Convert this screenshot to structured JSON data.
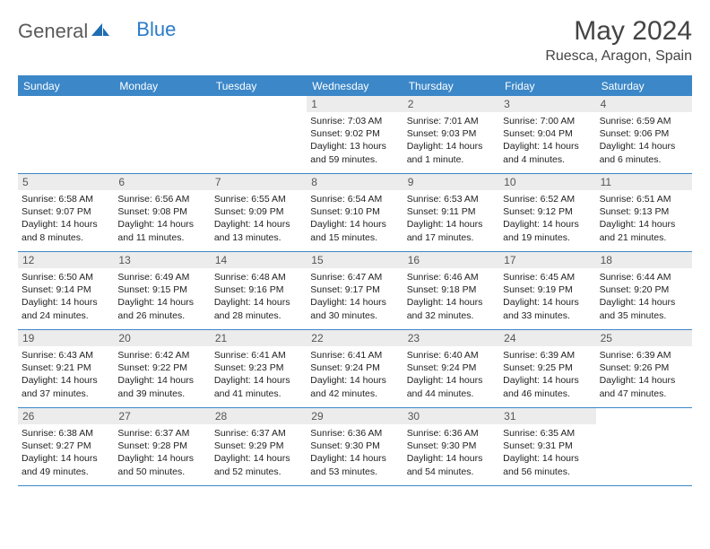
{
  "brand": {
    "part1": "General",
    "part2": "Blue"
  },
  "title": "May 2024",
  "location": "Ruesca, Aragon, Spain",
  "colors": {
    "header_bg": "#3b87c8",
    "header_text": "#ffffff",
    "daynum_bg": "#ececec",
    "daynum_text": "#555555",
    "body_text": "#222222",
    "brand_gray": "#5a5a5a",
    "brand_blue": "#2a7cc7",
    "rule": "#3b87c8"
  },
  "weekdays": [
    "Sunday",
    "Monday",
    "Tuesday",
    "Wednesday",
    "Thursday",
    "Friday",
    "Saturday"
  ],
  "weeks": [
    [
      {
        "blank": true
      },
      {
        "blank": true
      },
      {
        "blank": true
      },
      {
        "num": "1",
        "sunrise": "Sunrise: 7:03 AM",
        "sunset": "Sunset: 9:02 PM",
        "daylight": "Daylight: 13 hours and 59 minutes."
      },
      {
        "num": "2",
        "sunrise": "Sunrise: 7:01 AM",
        "sunset": "Sunset: 9:03 PM",
        "daylight": "Daylight: 14 hours and 1 minute."
      },
      {
        "num": "3",
        "sunrise": "Sunrise: 7:00 AM",
        "sunset": "Sunset: 9:04 PM",
        "daylight": "Daylight: 14 hours and 4 minutes."
      },
      {
        "num": "4",
        "sunrise": "Sunrise: 6:59 AM",
        "sunset": "Sunset: 9:06 PM",
        "daylight": "Daylight: 14 hours and 6 minutes."
      }
    ],
    [
      {
        "num": "5",
        "sunrise": "Sunrise: 6:58 AM",
        "sunset": "Sunset: 9:07 PM",
        "daylight": "Daylight: 14 hours and 8 minutes."
      },
      {
        "num": "6",
        "sunrise": "Sunrise: 6:56 AM",
        "sunset": "Sunset: 9:08 PM",
        "daylight": "Daylight: 14 hours and 11 minutes."
      },
      {
        "num": "7",
        "sunrise": "Sunrise: 6:55 AM",
        "sunset": "Sunset: 9:09 PM",
        "daylight": "Daylight: 14 hours and 13 minutes."
      },
      {
        "num": "8",
        "sunrise": "Sunrise: 6:54 AM",
        "sunset": "Sunset: 9:10 PM",
        "daylight": "Daylight: 14 hours and 15 minutes."
      },
      {
        "num": "9",
        "sunrise": "Sunrise: 6:53 AM",
        "sunset": "Sunset: 9:11 PM",
        "daylight": "Daylight: 14 hours and 17 minutes."
      },
      {
        "num": "10",
        "sunrise": "Sunrise: 6:52 AM",
        "sunset": "Sunset: 9:12 PM",
        "daylight": "Daylight: 14 hours and 19 minutes."
      },
      {
        "num": "11",
        "sunrise": "Sunrise: 6:51 AM",
        "sunset": "Sunset: 9:13 PM",
        "daylight": "Daylight: 14 hours and 21 minutes."
      }
    ],
    [
      {
        "num": "12",
        "sunrise": "Sunrise: 6:50 AM",
        "sunset": "Sunset: 9:14 PM",
        "daylight": "Daylight: 14 hours and 24 minutes."
      },
      {
        "num": "13",
        "sunrise": "Sunrise: 6:49 AM",
        "sunset": "Sunset: 9:15 PM",
        "daylight": "Daylight: 14 hours and 26 minutes."
      },
      {
        "num": "14",
        "sunrise": "Sunrise: 6:48 AM",
        "sunset": "Sunset: 9:16 PM",
        "daylight": "Daylight: 14 hours and 28 minutes."
      },
      {
        "num": "15",
        "sunrise": "Sunrise: 6:47 AM",
        "sunset": "Sunset: 9:17 PM",
        "daylight": "Daylight: 14 hours and 30 minutes."
      },
      {
        "num": "16",
        "sunrise": "Sunrise: 6:46 AM",
        "sunset": "Sunset: 9:18 PM",
        "daylight": "Daylight: 14 hours and 32 minutes."
      },
      {
        "num": "17",
        "sunrise": "Sunrise: 6:45 AM",
        "sunset": "Sunset: 9:19 PM",
        "daylight": "Daylight: 14 hours and 33 minutes."
      },
      {
        "num": "18",
        "sunrise": "Sunrise: 6:44 AM",
        "sunset": "Sunset: 9:20 PM",
        "daylight": "Daylight: 14 hours and 35 minutes."
      }
    ],
    [
      {
        "num": "19",
        "sunrise": "Sunrise: 6:43 AM",
        "sunset": "Sunset: 9:21 PM",
        "daylight": "Daylight: 14 hours and 37 minutes."
      },
      {
        "num": "20",
        "sunrise": "Sunrise: 6:42 AM",
        "sunset": "Sunset: 9:22 PM",
        "daylight": "Daylight: 14 hours and 39 minutes."
      },
      {
        "num": "21",
        "sunrise": "Sunrise: 6:41 AM",
        "sunset": "Sunset: 9:23 PM",
        "daylight": "Daylight: 14 hours and 41 minutes."
      },
      {
        "num": "22",
        "sunrise": "Sunrise: 6:41 AM",
        "sunset": "Sunset: 9:24 PM",
        "daylight": "Daylight: 14 hours and 42 minutes."
      },
      {
        "num": "23",
        "sunrise": "Sunrise: 6:40 AM",
        "sunset": "Sunset: 9:24 PM",
        "daylight": "Daylight: 14 hours and 44 minutes."
      },
      {
        "num": "24",
        "sunrise": "Sunrise: 6:39 AM",
        "sunset": "Sunset: 9:25 PM",
        "daylight": "Daylight: 14 hours and 46 minutes."
      },
      {
        "num": "25",
        "sunrise": "Sunrise: 6:39 AM",
        "sunset": "Sunset: 9:26 PM",
        "daylight": "Daylight: 14 hours and 47 minutes."
      }
    ],
    [
      {
        "num": "26",
        "sunrise": "Sunrise: 6:38 AM",
        "sunset": "Sunset: 9:27 PM",
        "daylight": "Daylight: 14 hours and 49 minutes."
      },
      {
        "num": "27",
        "sunrise": "Sunrise: 6:37 AM",
        "sunset": "Sunset: 9:28 PM",
        "daylight": "Daylight: 14 hours and 50 minutes."
      },
      {
        "num": "28",
        "sunrise": "Sunrise: 6:37 AM",
        "sunset": "Sunset: 9:29 PM",
        "daylight": "Daylight: 14 hours and 52 minutes."
      },
      {
        "num": "29",
        "sunrise": "Sunrise: 6:36 AM",
        "sunset": "Sunset: 9:30 PM",
        "daylight": "Daylight: 14 hours and 53 minutes."
      },
      {
        "num": "30",
        "sunrise": "Sunrise: 6:36 AM",
        "sunset": "Sunset: 9:30 PM",
        "daylight": "Daylight: 14 hours and 54 minutes."
      },
      {
        "num": "31",
        "sunrise": "Sunrise: 6:35 AM",
        "sunset": "Sunset: 9:31 PM",
        "daylight": "Daylight: 14 hours and 56 minutes."
      },
      {
        "blank": true
      }
    ]
  ]
}
